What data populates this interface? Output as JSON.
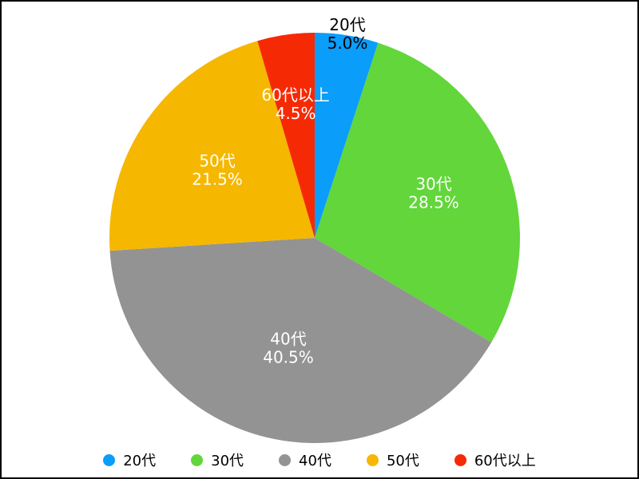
{
  "chart_data": {
    "type": "pie",
    "categories": [
      "20代",
      "30代",
      "40代",
      "50代",
      "60代以上"
    ],
    "values": [
      5.0,
      28.5,
      40.5,
      21.5,
      4.5
    ],
    "value_labels": [
      "5.0%",
      "28.5%",
      "40.5%",
      "21.5%",
      "4.5%"
    ],
    "colors": [
      "#0a9dfa",
      "#62d63a",
      "#939393",
      "#f5b700",
      "#f52a05"
    ],
    "label_colors": [
      "#000000",
      "#ffffff",
      "#ffffff",
      "#ffffff",
      "#ffffff"
    ],
    "start_angle": "12 o'clock",
    "direction": "clockwise",
    "legend_position": "bottom"
  }
}
